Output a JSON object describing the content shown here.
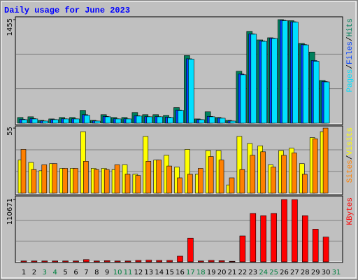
{
  "chart_data": {
    "type": "bar",
    "title": "Daily usage for June 2023",
    "categories": [
      "1",
      "2",
      "3",
      "4",
      "5",
      "6",
      "7",
      "8",
      "9",
      "10",
      "11",
      "12",
      "13",
      "14",
      "15",
      "16",
      "17",
      "18",
      "19",
      "20",
      "21",
      "22",
      "23",
      "24",
      "25",
      "26",
      "27",
      "28",
      "29",
      "30",
      "31"
    ],
    "category_colors": [
      "#000000",
      "#000000",
      "#008040",
      "#008040",
      "#000000",
      "#000000",
      "#000000",
      "#000000",
      "#000000",
      "#008040",
      "#008040",
      "#000000",
      "#000000",
      "#000000",
      "#000000",
      "#000000",
      "#008040",
      "#008040",
      "#000000",
      "#000000",
      "#000000",
      "#000000",
      "#000000",
      "#008040",
      "#008040",
      "#000000",
      "#000000",
      "#000000",
      "#000000",
      "#000000",
      "#008040"
    ],
    "separator": "/",
    "panels": [
      {
        "ylim": [
          0,
          1455
        ],
        "yticks": [
          1455
        ],
        "series": [
          {
            "name": "Hits",
            "color": "#00805c",
            "values": [
              80,
              90,
              40,
              60,
              80,
              80,
              180,
              40,
              120,
              80,
              80,
              150,
              120,
              120,
              110,
              220,
              950,
              60,
              160,
              80,
              40,
              730,
              1290,
              1170,
              1200,
              1455,
              1440,
              1120,
              1000,
              600,
              null
            ]
          },
          {
            "name": "Files",
            "color": "#0040ff",
            "values": [
              55,
              65,
              32,
              52,
              62,
              62,
              120,
              32,
              95,
              62,
              62,
              105,
              92,
              92,
              85,
              185,
              905,
              52,
              95,
              72,
              32,
              690,
              1255,
              1155,
              1195,
              1445,
              1425,
              1105,
              880,
              585,
              null
            ]
          },
          {
            "name": "Pages",
            "color": "#00e0ff",
            "values": [
              50,
              60,
              30,
              50,
              60,
              60,
              110,
              30,
              90,
              60,
              60,
              100,
              90,
              90,
              80,
              180,
              900,
              50,
              90,
              70,
              30,
              680,
              1250,
              1150,
              1190,
              1440,
              1420,
              1100,
              870,
              580,
              null
            ]
          }
        ]
      },
      {
        "ylim": [
          0,
          55
        ],
        "yticks": [
          55
        ],
        "series": [
          {
            "name": "Visits",
            "color": "#ffff00",
            "values": [
              28,
              26,
              19,
              25,
              21,
              21,
              52,
              21,
              21,
              20,
              24,
              16,
              48,
              28,
              32,
              22,
              37,
              16,
              36,
              36,
              7,
              48,
              42,
              40,
              24,
              36,
              38,
              25,
              47,
              52,
              null
            ]
          },
          {
            "name": "Sites",
            "color": "#ff8000",
            "values": [
              37,
              20,
              24,
              25,
              21,
              21,
              27,
              20,
              20,
              24,
              16,
              15,
              27,
              28,
              23,
              13,
              16,
              21,
              31,
              28,
              13,
              20,
              32,
              35,
              22,
              32,
              34,
              16,
              46,
              55,
              null
            ]
          }
        ]
      },
      {
        "ylim": [
          0,
          110671
        ],
        "yticks": [
          110671
        ],
        "series": [
          {
            "name": "KBytes",
            "color": "#ff0000",
            "values": [
              1500,
              1500,
              1500,
              1500,
              1500,
              1500,
              4000,
              1500,
              2000,
              1500,
              1500,
              2500,
              3000,
              2500,
              2500,
              10000,
              42000,
              1500,
              2500,
              2000,
              1000,
              46000,
              86000,
              82000,
              86000,
              110671,
              110500,
              82000,
              58000,
              44000,
              null
            ]
          }
        ]
      }
    ]
  }
}
